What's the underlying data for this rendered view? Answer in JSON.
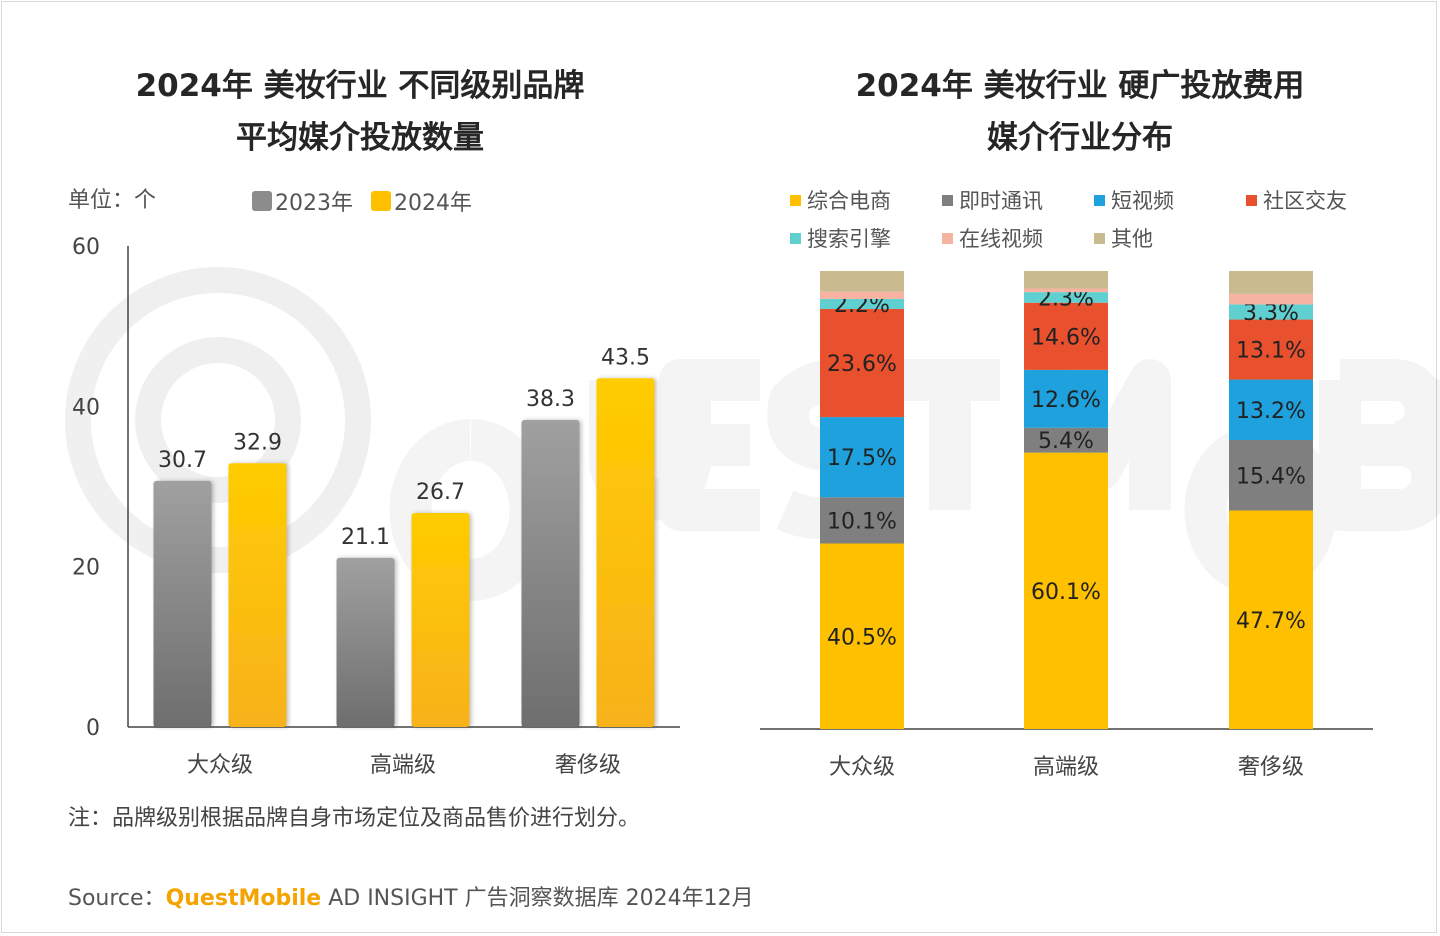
{
  "left_title": [
    "2024年 美妆行业 不同级别品牌",
    "平均媒介投放数量"
  ],
  "right_title": [
    "2024年 美妆行业 硬广投放费用",
    "媒介行业分布"
  ],
  "unit_label": "单位：个",
  "note": "注：品牌级别根据品牌自身市场定位及商品售价进行划分。",
  "source": {
    "prefix": "Source：",
    "brand": "QuestMobile",
    "suffix": " AD INSIGHT 广告洞察数据库 2024年12月"
  },
  "colors": {
    "y2023": "#8c8c8c",
    "y2024": "#ffc000",
    "ecommerce": "#ffc000",
    "instant": "#7f7f7f",
    "shortvideo": "#1ea1dc",
    "social": "#e8502e",
    "search": "#5fcfcf",
    "online_video": "#f6b3a1",
    "other": "#c9bb8f"
  },
  "chart_data": [
    {
      "type": "bar",
      "categories": [
        "大众级",
        "高端级",
        "奢侈级"
      ],
      "series": [
        {
          "name": "2023年",
          "values": [
            30.7,
            21.1,
            38.3
          ]
        },
        {
          "name": "2024年",
          "values": [
            32.9,
            26.7,
            43.5
          ]
        }
      ],
      "ylim": [
        0,
        60
      ],
      "yticks": [
        0,
        20,
        40,
        60
      ],
      "legend": "top"
    },
    {
      "type": "bar",
      "stacked": true,
      "categories": [
        "大众级",
        "高端级",
        "奢侈级"
      ],
      "series": [
        {
          "name": "综合电商",
          "key": "ecommerce",
          "values": [
            40.5,
            60.1,
            47.7
          ],
          "labels": [
            "40.5%",
            "60.1%",
            "47.7%"
          ]
        },
        {
          "name": "即时通讯",
          "key": "instant",
          "values": [
            10.1,
            5.4,
            15.4
          ],
          "labels": [
            "10.1%",
            "5.4%",
            "15.4%"
          ]
        },
        {
          "name": "短视频",
          "key": "shortvideo",
          "values": [
            17.5,
            12.6,
            13.2
          ],
          "labels": [
            "17.5%",
            "12.6%",
            "13.2%"
          ]
        },
        {
          "name": "社区交友",
          "key": "social",
          "values": [
            23.6,
            14.6,
            13.1
          ],
          "labels": [
            "23.6%",
            "14.6%",
            "13.1%"
          ]
        },
        {
          "name": "搜索引擎",
          "key": "search",
          "values": [
            2.2,
            2.3,
            3.3
          ],
          "labels": [
            "2.2%",
            "2.3%",
            "3.3%"
          ]
        },
        {
          "name": "在线视频",
          "key": "online_video",
          "values": [
            1.6,
            0.8,
            2.3
          ],
          "labels": [
            "",
            "",
            ""
          ]
        },
        {
          "name": "其他",
          "key": "other",
          "values": [
            4.5,
            3.8,
            5.0
          ],
          "labels": [
            "",
            "",
            ""
          ]
        }
      ],
      "ylim": [
        0,
        100
      ],
      "legend": "top"
    }
  ]
}
